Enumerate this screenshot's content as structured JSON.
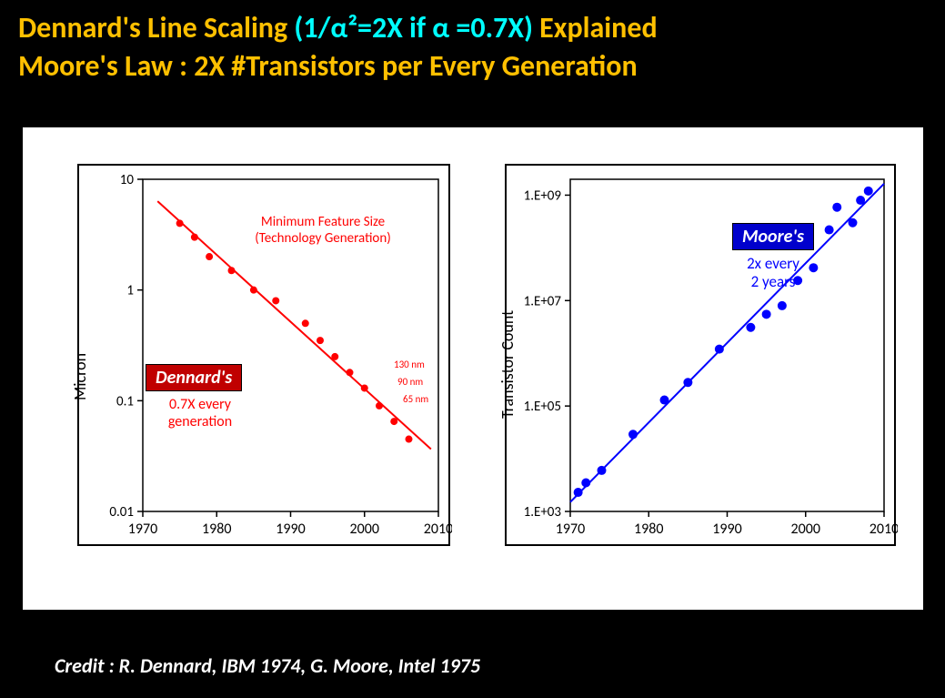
{
  "title": {
    "line1_part1": "Dennard's Line Scaling ",
    "line1_part2": "(1/α²=2X if α =0.7X) ",
    "line1_part3": "Explained",
    "line2": "Moore's Law : 2X #Transistors per Every Generation",
    "color_main": "#ffc000",
    "color_accent": "#00ffff",
    "fontsize": 32
  },
  "panel": {
    "background": "#ffffff"
  },
  "left_chart": {
    "type": "scatter-line-logy",
    "ylabel": "Micron",
    "xlim": [
      1970,
      2010
    ],
    "ylim": [
      0.01,
      10
    ],
    "xticks": [
      1970,
      1980,
      1990,
      2000,
      2010
    ],
    "yticks": [
      0.01,
      0.1,
      1,
      10
    ],
    "ytick_labels": [
      "0.01",
      "0.1",
      "1",
      "10"
    ],
    "series_color": "#ff0000",
    "annotation1_line1": "Minimum Feature Size",
    "annotation1_line2": "(Technology Generation)",
    "badge": {
      "text": "Dennard's",
      "bg": "#c00000",
      "fg": "#ffffff"
    },
    "sub_line1": "0.7X every",
    "sub_line2": "generation",
    "nm_labels": [
      "130 nm",
      "90 nm",
      "65 nm"
    ],
    "points": [
      {
        "x": 1975,
        "y": 4.0
      },
      {
        "x": 1977,
        "y": 3.0
      },
      {
        "x": 1979,
        "y": 2.0
      },
      {
        "x": 1982,
        "y": 1.5
      },
      {
        "x": 1985,
        "y": 1.0
      },
      {
        "x": 1988,
        "y": 0.8
      },
      {
        "x": 1992,
        "y": 0.5
      },
      {
        "x": 1994,
        "y": 0.35
      },
      {
        "x": 1996,
        "y": 0.25
      },
      {
        "x": 1998,
        "y": 0.18
      },
      {
        "x": 2000,
        "y": 0.13
      },
      {
        "x": 2002,
        "y": 0.09
      },
      {
        "x": 2004,
        "y": 0.065
      },
      {
        "x": 2006,
        "y": 0.045
      }
    ],
    "line_width": 2,
    "marker_radius": 4,
    "axis_color": "#000000",
    "label_fontsize": 18
  },
  "right_chart": {
    "type": "scatter-line-logy",
    "ylabel": "Transistor Count",
    "xlim": [
      1970,
      2010
    ],
    "ylim": [
      1000.0,
      2000000000.0
    ],
    "xticks": [
      1970,
      1980,
      1990,
      2000,
      2010
    ],
    "yticks": [
      1000.0,
      100000.0,
      10000000.0,
      1000000000.0
    ],
    "ytick_labels": [
      "1.E+03",
      "1.E+05",
      "1.E+07",
      "1.E+09"
    ],
    "series_color": "#0000ff",
    "badge": {
      "text": "Moore's",
      "bg": "#0000cc",
      "fg": "#ffffff"
    },
    "annotation_line1": "2x every",
    "annotation_line2": "2 years",
    "points": [
      {
        "x": 1971,
        "y": 2300.0
      },
      {
        "x": 1972,
        "y": 3500.0
      },
      {
        "x": 1974,
        "y": 6000.0
      },
      {
        "x": 1978,
        "y": 29000.0
      },
      {
        "x": 1982,
        "y": 130000.0
      },
      {
        "x": 1985,
        "y": 280000.0
      },
      {
        "x": 1989,
        "y": 1200000.0
      },
      {
        "x": 1993,
        "y": 3100000.0
      },
      {
        "x": 1995,
        "y": 5500000.0
      },
      {
        "x": 1997,
        "y": 8000000.0
      },
      {
        "x": 1999,
        "y": 24000000.0
      },
      {
        "x": 2001,
        "y": 42000000.0
      },
      {
        "x": 2003,
        "y": 220000000.0
      },
      {
        "x": 2004,
        "y": 590000000.0
      },
      {
        "x": 2006,
        "y": 300000000.0
      },
      {
        "x": 2007,
        "y": 800000000.0
      },
      {
        "x": 2008,
        "y": 1200000000.0
      }
    ],
    "line_width": 2,
    "marker_radius": 5,
    "axis_color": "#000000",
    "label_fontsize": 18
  },
  "credit": "Credit : R. Dennard, IBM 1974, G. Moore, Intel 1975"
}
